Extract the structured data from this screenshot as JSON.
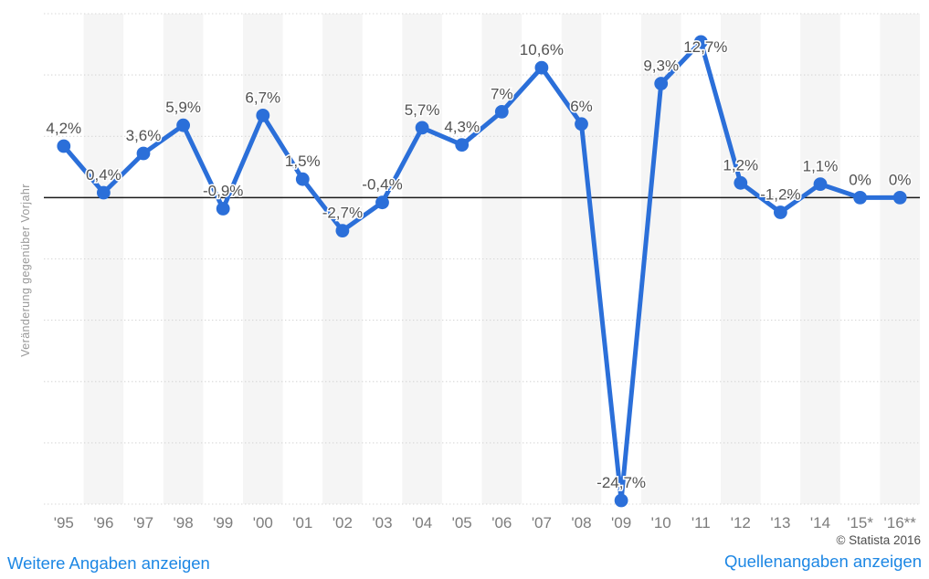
{
  "chart_data": {
    "type": "line",
    "title": "",
    "xlabel": "",
    "ylabel": "Veränderung gegenüber Vorjahr",
    "categories": [
      "'95",
      "'96",
      "'97",
      "'98",
      "'99",
      "'00",
      "'01",
      "'02",
      "'03",
      "'04",
      "'05",
      "'06",
      "'07",
      "'08",
      "'09",
      "'10",
      "'11",
      "'12",
      "'13",
      "'14",
      "'15*",
      "'16**"
    ],
    "values": [
      4.2,
      0.4,
      3.6,
      5.9,
      -0.9,
      6.7,
      1.5,
      -2.7,
      -0.4,
      5.7,
      4.3,
      7,
      10.6,
      6,
      -24.7,
      9.3,
      12.7,
      1.2,
      -1.2,
      1.1,
      0,
      0
    ],
    "value_labels": [
      "4,2%",
      "0,4%",
      "3,6%",
      "5,9%",
      "-0,9%",
      "6,7%",
      "1,5%",
      "-2,7%",
      "-0,4%",
      "5,7%",
      "4,3%",
      "7%",
      "10,6%",
      "6%",
      "-24,7%",
      "9,3%",
      "12,7%",
      "1,2%",
      "-1,2%",
      "1,1%",
      "0%",
      "0%"
    ],
    "ylim": [
      -25,
      15
    ],
    "grid_step": 5,
    "grid": "horizontal dotted gridlines every 5%, solid black zero line, alternating vertical column shading",
    "legend": "none",
    "zero_line": true,
    "marker": "circle"
  },
  "colors": {
    "series_blue": "#2b6fd9",
    "link_blue": "#1d87e4",
    "band_gray": "#f5f5f5",
    "grid_gray": "#d7d7d7",
    "zero_line_black": "#1a1a1a",
    "value_label_gray": "#525252",
    "tick_gray": "#7d7d7d",
    "axis_title_gray": "#999999"
  },
  "footer": {
    "left_link": "Weitere Angaben anzeigen",
    "right_link": "Quellenangaben anzeigen",
    "copyright": "© Statista 2016"
  }
}
